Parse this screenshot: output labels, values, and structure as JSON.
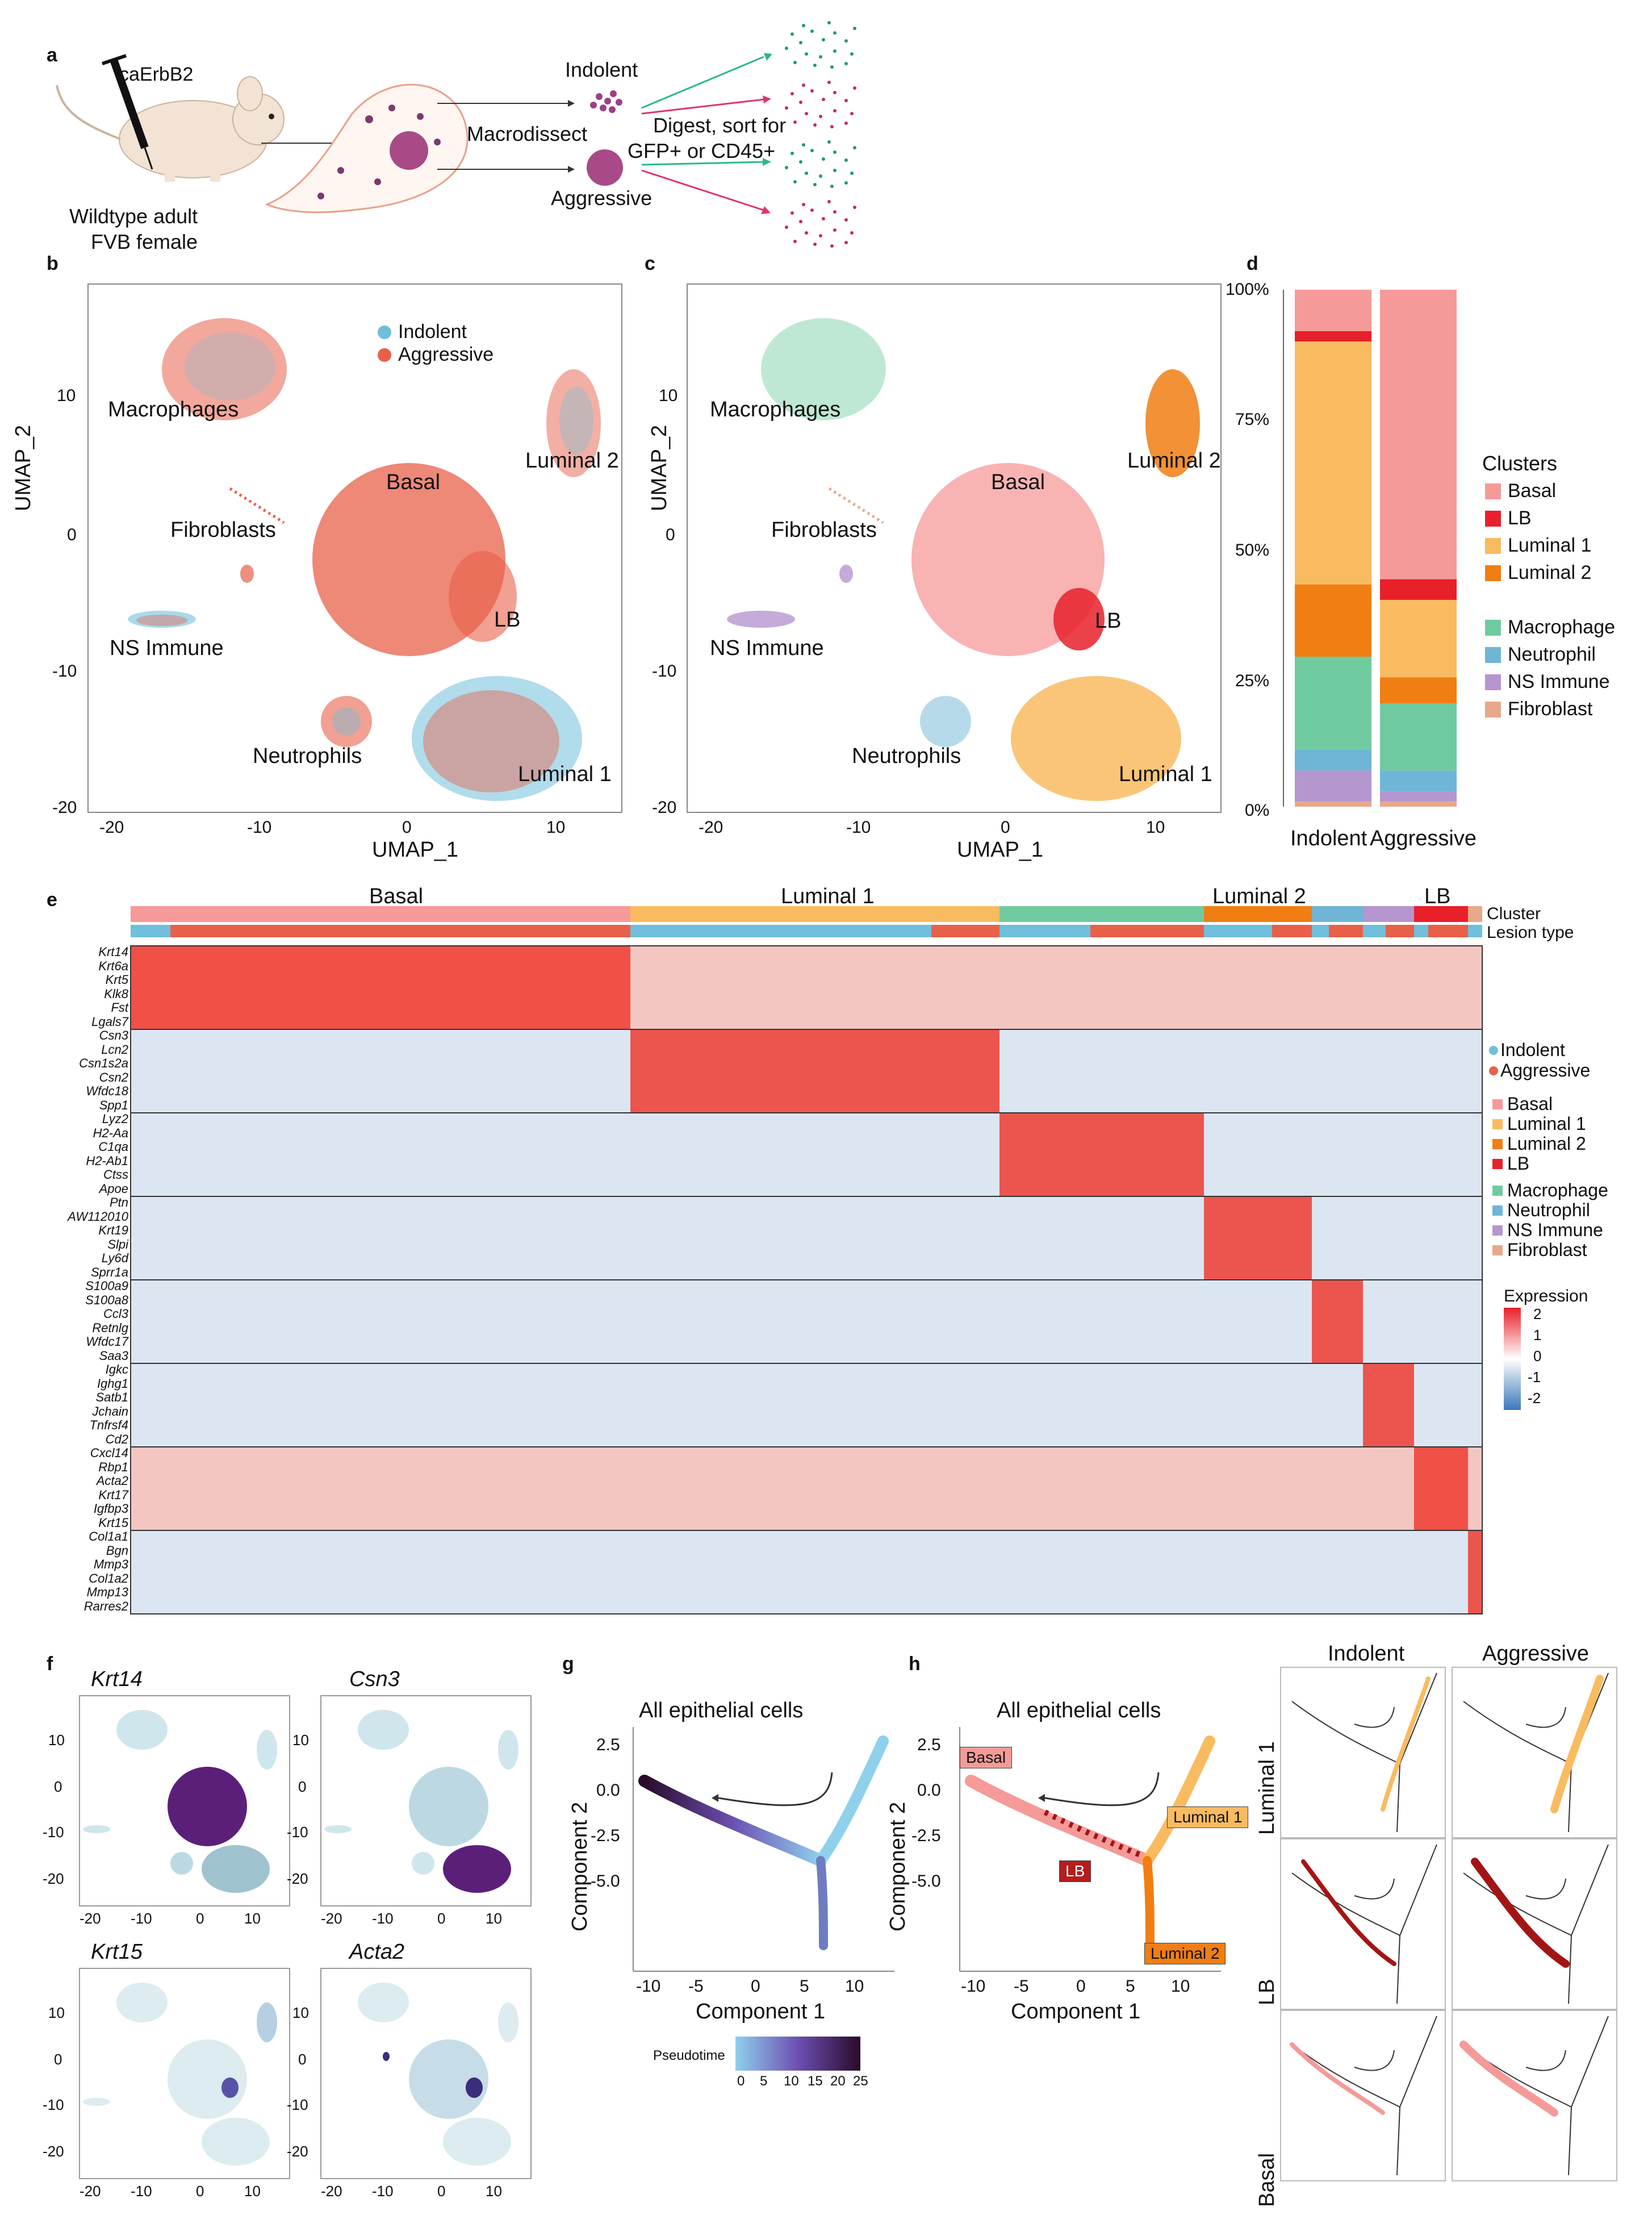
{
  "panel_a": {
    "letter": "a",
    "injection": "caErbB2",
    "mouse_caption_1": "Wildtype adult",
    "mouse_caption_2": "FVB female",
    "macrodissect": "Macrodissect",
    "indolent": "Indolent",
    "aggressive": "Aggressive",
    "digest_1": "Digest, sort for",
    "digest_2": "GFP+ or CD45+"
  },
  "panel_b": {
    "letter": "b",
    "legend": [
      "Indolent",
      "Aggressive"
    ],
    "xlabel": "UMAP_1",
    "ylabel": "UMAP_2",
    "xticks": [
      "-20",
      "-10",
      "0",
      "10"
    ],
    "yticks": [
      "10",
      "0",
      "-10",
      "-20"
    ],
    "clusters": [
      "Macrophages",
      "Luminal 2",
      "Basal",
      "Fibroblasts",
      "LB",
      "NS Immune",
      "Neutrophils",
      "Luminal 1"
    ]
  },
  "panel_c": {
    "letter": "c",
    "xlabel": "UMAP_1",
    "ylabel": "UMAP_2",
    "xticks": [
      "-20",
      "-10",
      "0",
      "10"
    ],
    "yticks": [
      "10",
      "0",
      "-10",
      "-20"
    ],
    "clusters": [
      "Macrophages",
      "Luminal 2",
      "Basal",
      "Fibroblasts",
      "LB",
      "NS Immune",
      "Neutrophils",
      "Luminal 1"
    ]
  },
  "panel_d": {
    "letter": "d",
    "yticks": [
      "100%",
      "75%",
      "50%",
      "25%",
      "0%"
    ],
    "legend_title": "Clusters",
    "legend": [
      "Basal",
      "LB",
      "Luminal 1",
      "Luminal 2",
      "Macrophage",
      "Neutrophil",
      "NS Immune",
      "Fibroblast"
    ],
    "xlabels": [
      "Indolent",
      "Aggressive"
    ]
  },
  "panel_e": {
    "letter": "e",
    "top_labels": [
      "Basal",
      "Luminal 1",
      "Luminal 2",
      "LB"
    ],
    "cluster_label": "Cluster",
    "lesion_label": "Lesion type",
    "lesion_legend": [
      "Indolent",
      "Aggressive"
    ],
    "cluster_legend": [
      "Basal",
      "Luminal 1",
      "Luminal 2",
      "LB",
      "Macrophage",
      "Neutrophil",
      "NS Immune",
      "Fibroblast"
    ],
    "expression_title": "Expression",
    "expression_ticks": [
      "2",
      "1",
      "0",
      "-1",
      "-2"
    ],
    "genes": [
      "Krt14",
      "Krt6a",
      "Krt5",
      "Klk8",
      "Fst",
      "Lgals7",
      "Csn3",
      "Lcn2",
      "Csn1s2a",
      "Csn2",
      "Wfdc18",
      "Spp1",
      "Lyz2",
      "H2-Aa",
      "C1qa",
      "H2-Ab1",
      "Ctss",
      "Apoe",
      "Ptn",
      "AW112010",
      "Krt19",
      "Slpi",
      "Ly6d",
      "Sprr1a",
      "S100a9",
      "S100a8",
      "Ccl3",
      "Retnlg",
      "Wfdc17",
      "Saa3",
      "Igkc",
      "Ighg1",
      "Satb1",
      "Jchain",
      "Tnfrsf4",
      "Cd2",
      "Cxcl14",
      "Rbp1",
      "Acta2",
      "Krt17",
      "Igfbp3",
      "Krt15",
      "Col1a1",
      "Bgn",
      "Mmp3",
      "Col1a2",
      "Mmp13",
      "Rarres2"
    ]
  },
  "panel_f": {
    "letter": "f",
    "genes": [
      "Krt14",
      "Csn3",
      "Krt15",
      "Acta2"
    ],
    "xticks": [
      "-20",
      "-10",
      "0",
      "10"
    ],
    "yticks": [
      "10",
      "0",
      "-10",
      "-20"
    ]
  },
  "panel_g": {
    "letter": "g",
    "title": "All epithelial cells",
    "xlabel": "Component 1",
    "ylabel": "Component 2",
    "xticks": [
      "-10",
      "-5",
      "0",
      "5",
      "10"
    ],
    "yticks": [
      "2.5",
      "0.0",
      "-2.5",
      "-5.0"
    ],
    "colorbar_title": "Pseudotime",
    "colorbar_ticks": [
      "0",
      "5",
      "10",
      "15",
      "20",
      "25"
    ]
  },
  "panel_h": {
    "letter": "h",
    "title": "All epithelial cells",
    "xlabel": "Component 1",
    "ylabel": "Component 2",
    "xticks": [
      "-10",
      "-5",
      "0",
      "5",
      "10"
    ],
    "yticks": [
      "2.5",
      "0.0",
      "-2.5",
      "-5.0"
    ],
    "branch_labels": [
      "Basal",
      "Luminal 1",
      "LB",
      "Luminal 2"
    ],
    "column_titles": [
      "Indolent",
      "Aggressive"
    ],
    "row_titles": [
      "Luminal 1",
      "LB",
      "Basal"
    ]
  },
  "colors": {
    "indolent": "#6fbfdc",
    "aggressive": "#e8604a",
    "basal": "#f59a98",
    "lb": "#e8202a",
    "luminal1": "#f9bb60",
    "luminal2": "#f07e13",
    "macrophage": "#6fcb9f",
    "neutrophil": "#6fb5d6",
    "ns_immune": "#b596cf",
    "fibroblast": "#e8a88a"
  },
  "chart_data": [
    {
      "type": "bar",
      "title": "",
      "categories": [
        "Indolent",
        "Aggressive"
      ],
      "ylabel": "",
      "ylim": [
        0,
        100
      ],
      "stacked": true,
      "series": [
        {
          "name": "Fibroblast",
          "values": [
            1,
            1
          ]
        },
        {
          "name": "NS Immune",
          "values": [
            6,
            2
          ]
        },
        {
          "name": "Neutrophil",
          "values": [
            4,
            4
          ]
        },
        {
          "name": "Macrophage",
          "values": [
            18,
            13
          ]
        },
        {
          "name": "Luminal 2",
          "values": [
            14,
            5
          ]
        },
        {
          "name": "Luminal 1",
          "values": [
            47,
            15
          ]
        },
        {
          "name": "LB",
          "values": [
            2,
            4
          ]
        },
        {
          "name": "Basal",
          "values": [
            8,
            56
          ]
        }
      ]
    }
  ]
}
